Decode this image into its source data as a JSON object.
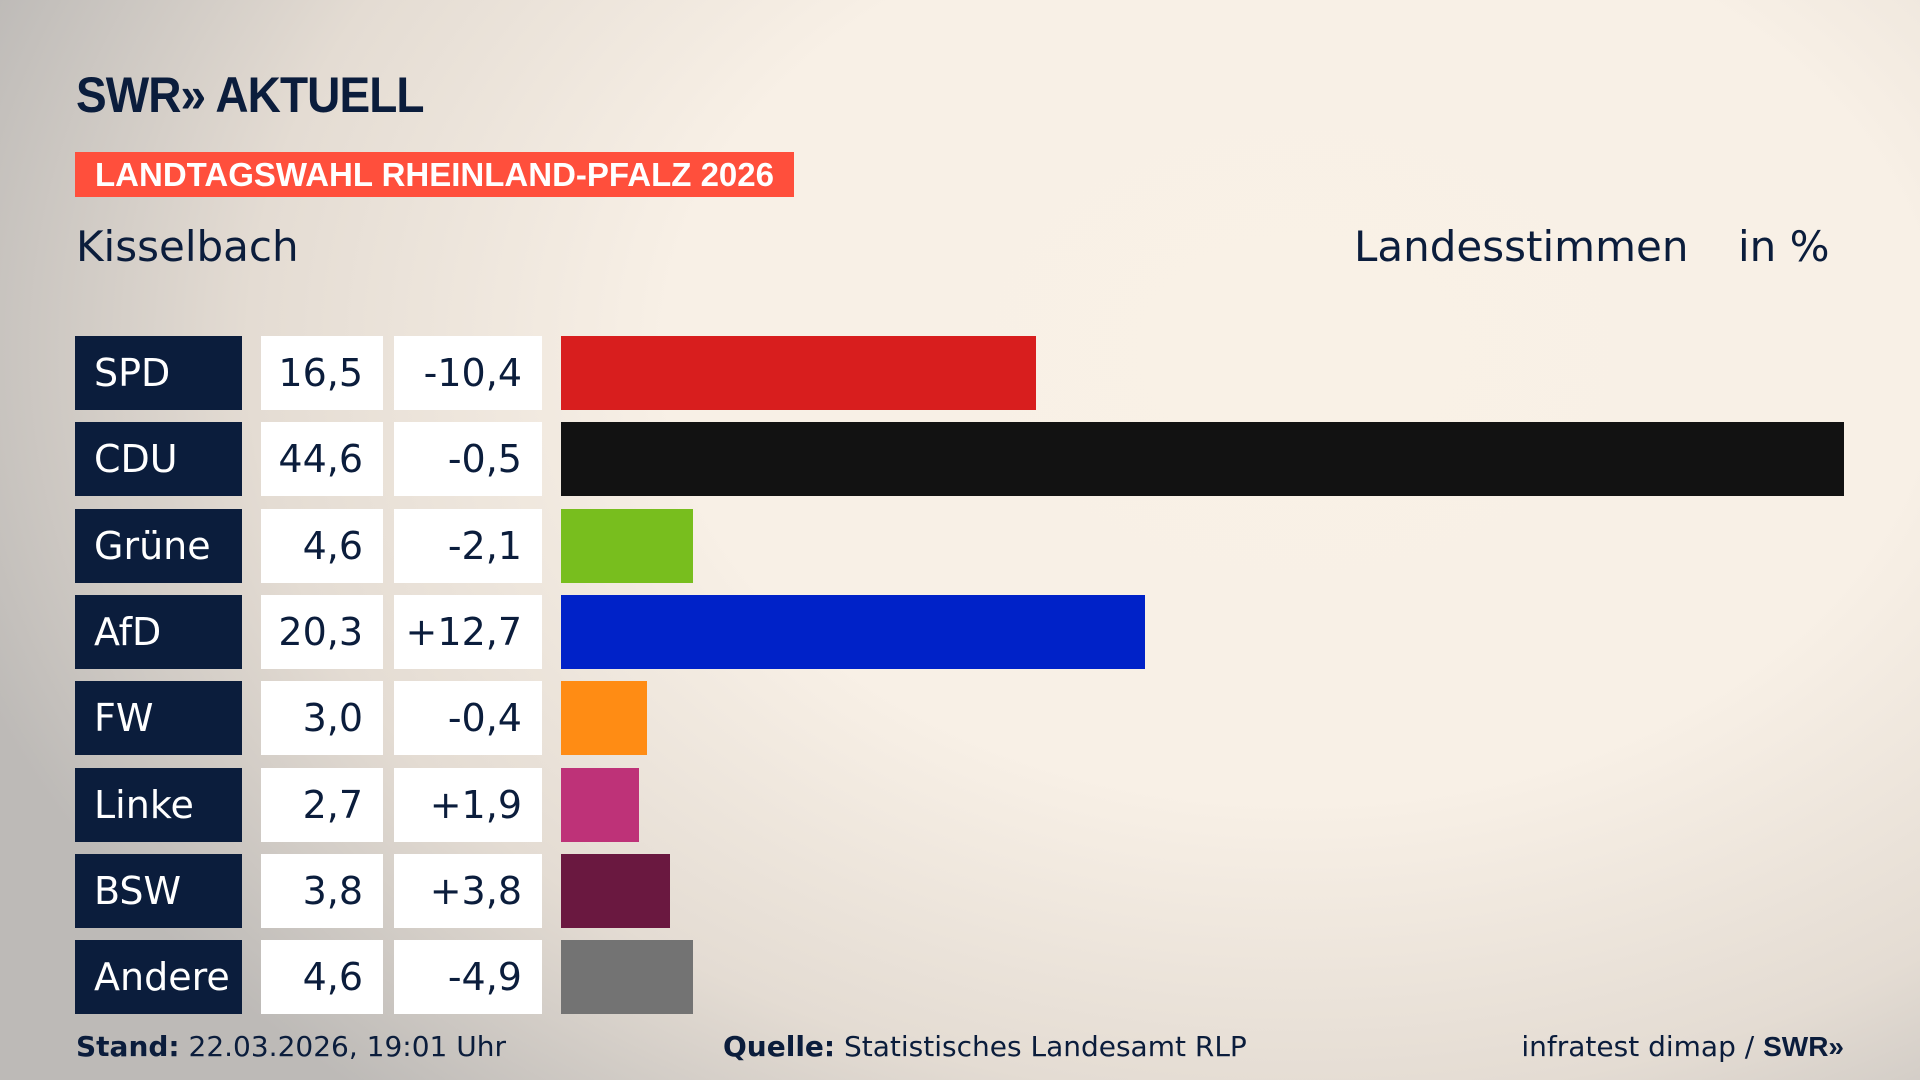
{
  "header": {
    "logo": "SWR» AKTUELL",
    "badge": "LANDTAGSWAHL RHEINLAND-PFALZ 2026",
    "place": "Kisselbach",
    "measure": "Landesstimmen",
    "unit": "in %"
  },
  "chart_data": {
    "type": "bar",
    "orientation": "horizontal",
    "categories": [
      "SPD",
      "CDU",
      "Grüne",
      "AfD",
      "FW",
      "Linke",
      "BSW",
      "Andere"
    ],
    "values": [
      16.5,
      44.6,
      4.6,
      20.3,
      3.0,
      2.7,
      3.8,
      4.6
    ],
    "value_labels": [
      "16,5",
      "44,6",
      "4,6",
      "20,3",
      "3,0",
      "2,7",
      "3,8",
      "4,6"
    ],
    "diff_labels": [
      "-10,4",
      "-0,5",
      "-2,1",
      "+12,7",
      "-0,4",
      "+1,9",
      "+3,8",
      "-4,9"
    ],
    "colors": [
      "#d81e1e",
      "#121212",
      "#78be1e",
      "#0022c8",
      "#ff8c14",
      "#be3278",
      "#6a1840",
      "#737373"
    ]
  },
  "footer": {
    "stand_label": "Stand:",
    "stand": " 22.03.2026, 19:01 Uhr",
    "source_label": "Quelle:",
    "source": " Statistisches Landesamt RLP",
    "credit": "infratest dimap / ",
    "credit_logo": "SWR»"
  }
}
